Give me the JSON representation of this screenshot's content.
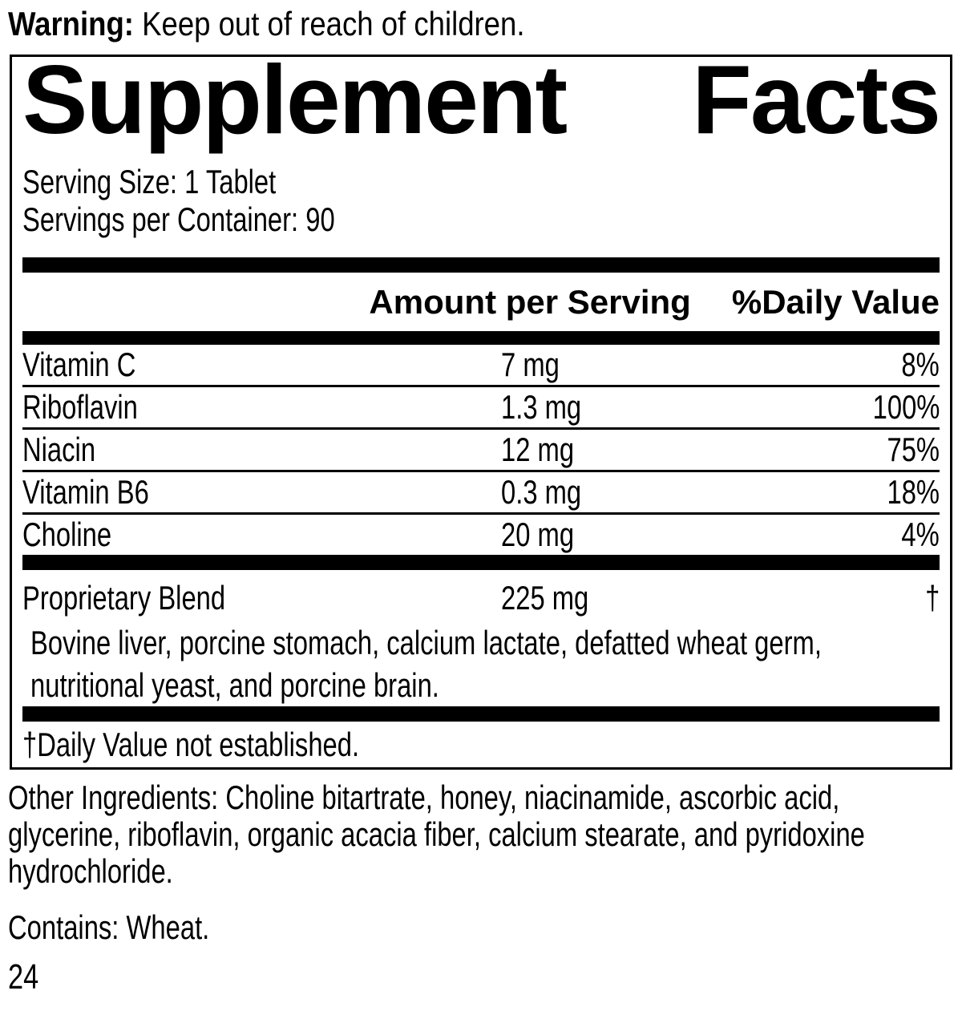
{
  "warning": {
    "label": "Warning:",
    "text": " Keep out of reach of children."
  },
  "panel": {
    "title_left": "Supplement",
    "title_right": "Facts",
    "serving_size": "Serving Size: 1 Tablet",
    "servings_per_container": "Servings per Container: 90",
    "columns": {
      "amount": "Amount per Serving",
      "daily_value": "%Daily Value"
    },
    "rows": [
      {
        "name": "Vitamin C",
        "amount": "7 mg",
        "dv": "8%"
      },
      {
        "name": "Riboflavin",
        "amount": "1.3 mg",
        "dv": "100%"
      },
      {
        "name": "Niacin",
        "amount": "12 mg",
        "dv": "75%"
      },
      {
        "name": "Vitamin B6",
        "amount": "0.3 mg",
        "dv": "18%"
      },
      {
        "name": "Choline",
        "amount": "20 mg",
        "dv": "4%"
      }
    ],
    "blend": {
      "name": "Proprietary Blend",
      "amount": "225 mg",
      "dv": "†",
      "description": "Bovine liver, porcine stomach, calcium lactate, defatted wheat germ, nutritional yeast, and porcine brain."
    },
    "footnote": "†Daily Value not established."
  },
  "other_ingredients": "Other Ingredients: Choline bitartrate, honey, niacinamide, ascorbic acid, glycerine, riboflavin, organic acacia fiber, calcium stearate, and pyridoxine hydrochloride.",
  "contains": "Contains: Wheat.",
  "page_number": "24",
  "colors": {
    "ink": "#000000",
    "background": "#ffffff"
  }
}
